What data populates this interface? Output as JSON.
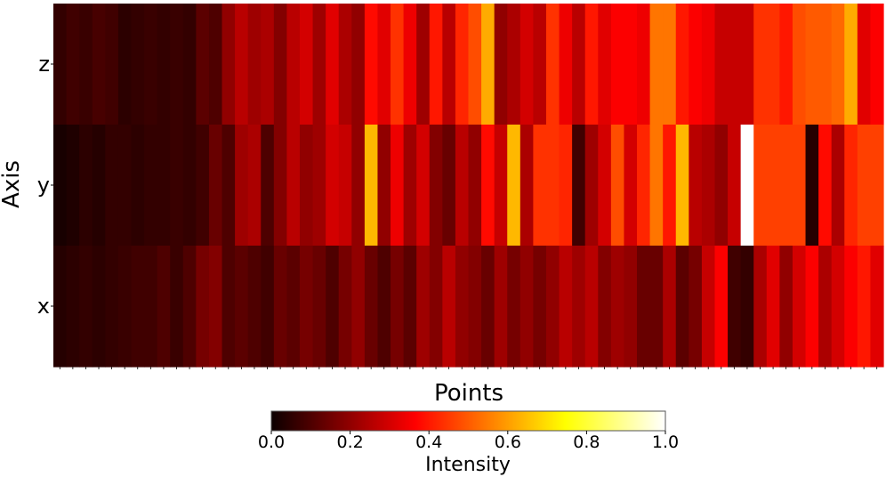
{
  "chart_data": {
    "type": "heatmap",
    "title": "",
    "xlabel": "Points",
    "ylabel": "Axis",
    "rows": [
      "z",
      "y",
      "x"
    ],
    "columns": 64,
    "colormap": "hot",
    "colorbar": {
      "label": "Intensity",
      "range": [
        0.0,
        1.0
      ],
      "ticks": [
        "0.0",
        "0.2",
        "0.4",
        "0.6",
        "0.8",
        "1.0"
      ]
    },
    "values": {
      "z": [
        0.06,
        0.08,
        0.07,
        0.09,
        0.08,
        0.05,
        0.06,
        0.07,
        0.06,
        0.07,
        0.06,
        0.12,
        0.1,
        0.2,
        0.26,
        0.22,
        0.24,
        0.18,
        0.26,
        0.3,
        0.22,
        0.32,
        0.24,
        0.2,
        0.38,
        0.32,
        0.44,
        0.34,
        0.22,
        0.4,
        0.26,
        0.42,
        0.48,
        0.62,
        0.2,
        0.24,
        0.3,
        0.26,
        0.44,
        0.34,
        0.26,
        0.4,
        0.32,
        0.36,
        0.36,
        0.34,
        0.54,
        0.54,
        0.4,
        0.36,
        0.34,
        0.28,
        0.28,
        0.28,
        0.44,
        0.44,
        0.4,
        0.48,
        0.5,
        0.5,
        0.52,
        0.62,
        0.32,
        0.36
      ],
      "y": [
        0.02,
        0.03,
        0.05,
        0.04,
        0.06,
        0.06,
        0.05,
        0.06,
        0.06,
        0.07,
        0.06,
        0.08,
        0.14,
        0.1,
        0.22,
        0.24,
        0.1,
        0.18,
        0.26,
        0.2,
        0.22,
        0.3,
        0.28,
        0.2,
        0.64,
        0.2,
        0.34,
        0.22,
        0.3,
        0.18,
        0.14,
        0.26,
        0.2,
        0.38,
        0.28,
        0.64,
        0.24,
        0.44,
        0.44,
        0.42,
        0.08,
        0.22,
        0.3,
        0.48,
        0.3,
        0.42,
        0.54,
        0.4,
        0.64,
        0.26,
        0.24,
        0.2,
        0.28,
        1.0,
        0.46,
        0.46,
        0.46,
        0.46,
        0.04,
        0.38,
        0.24,
        0.42,
        0.46,
        0.46
      ],
      "x": [
        0.04,
        0.05,
        0.06,
        0.05,
        0.06,
        0.07,
        0.08,
        0.08,
        0.1,
        0.07,
        0.1,
        0.16,
        0.18,
        0.1,
        0.12,
        0.1,
        0.08,
        0.14,
        0.12,
        0.16,
        0.14,
        0.1,
        0.16,
        0.2,
        0.14,
        0.1,
        0.16,
        0.12,
        0.22,
        0.18,
        0.26,
        0.2,
        0.18,
        0.14,
        0.22,
        0.16,
        0.2,
        0.16,
        0.2,
        0.26,
        0.22,
        0.26,
        0.18,
        0.22,
        0.2,
        0.14,
        0.14,
        0.24,
        0.12,
        0.16,
        0.28,
        0.36,
        0.08,
        0.06,
        0.24,
        0.32,
        0.2,
        0.3,
        0.36,
        0.24,
        0.3,
        0.36,
        0.4,
        0.32
      ]
    }
  }
}
